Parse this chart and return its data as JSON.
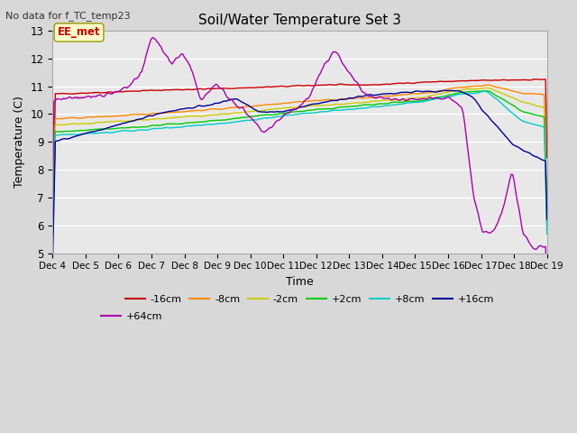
{
  "title": "Soil/Water Temperature Set 3",
  "xlabel": "Time",
  "ylabel": "Temperature (C)",
  "ylim": [
    5.0,
    13.0
  ],
  "yticks": [
    5.0,
    6.0,
    7.0,
    8.0,
    9.0,
    10.0,
    11.0,
    12.0,
    13.0
  ],
  "no_data_text": "No data for f_TC_temp23",
  "ee_met_label": "EE_met",
  "series_labels": [
    "-16cm",
    "-8cm",
    "-2cm",
    "+2cm",
    "+8cm",
    "+16cm",
    "+64cm"
  ],
  "series_colors": [
    "#cc0000",
    "#ff8800",
    "#cccc00",
    "#00cc00",
    "#00cccc",
    "#000099",
    "#aa00aa"
  ],
  "background_color": "#d8d8d8",
  "plot_bg_color": "#e8e8e8",
  "n_points": 361,
  "x_start": 4.0,
  "x_end": 19.0,
  "xtick_labels": [
    "Dec 4",
    "Dec 5",
    "Dec 6",
    "Dec 7",
    "Dec 8",
    "Dec 9",
    "Dec 10",
    "Dec 11",
    "Dec 12",
    "Dec 13",
    "Dec 14",
    "Dec 15",
    "Dec 16",
    "Dec 17",
    "Dec 18",
    "Dec 19"
  ],
  "xtick_positions": [
    4,
    5,
    6,
    7,
    8,
    9,
    10,
    11,
    12,
    13,
    14,
    15,
    16,
    17,
    18,
    19
  ]
}
